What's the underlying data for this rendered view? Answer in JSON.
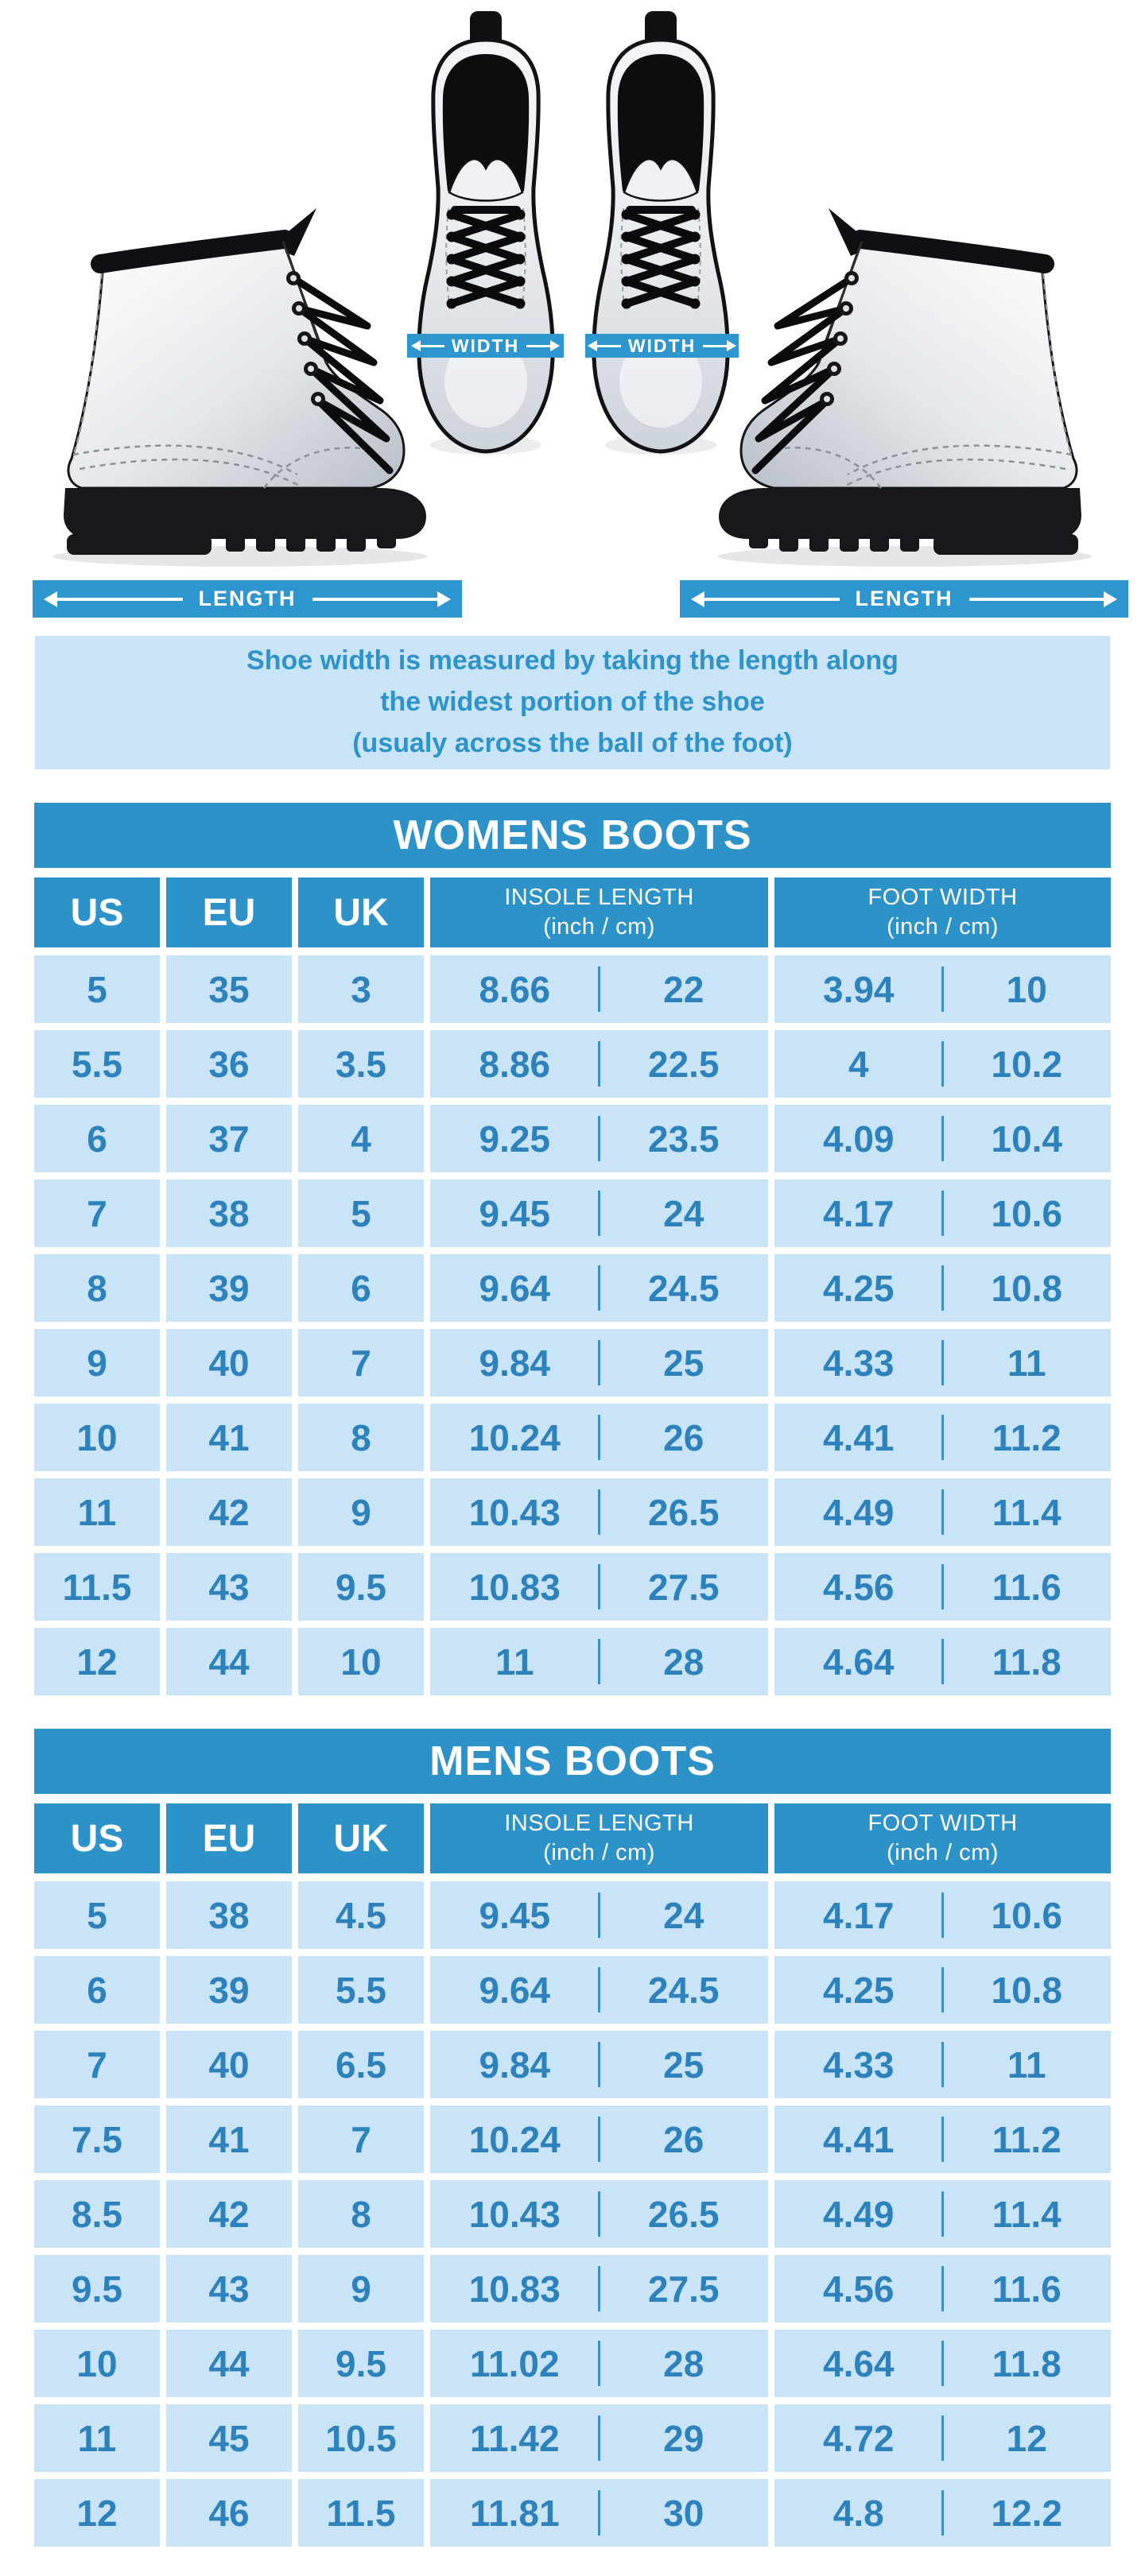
{
  "colors": {
    "solid_blue": "#2D92C8",
    "band_blue": "#2E96CE",
    "light_cell_blue": "#C9E4F6",
    "value_text_blue": "#2E82BC",
    "white": "#FFFFFF"
  },
  "measure_labels": {
    "width_left": "WIDTH",
    "width_right": "WIDTH",
    "length_left": "LENGTH",
    "length_right": "LENGTH"
  },
  "info_note": {
    "line1": "Shoe width is measured by taking the length along",
    "line2": "the widest portion of the shoe",
    "line3": "(usualy across the ball of the foot)"
  },
  "womens_table": {
    "title": "WOMENS BOOTS",
    "headers": {
      "us": "US",
      "eu": "EU",
      "uk": "UK",
      "insole_line1": "INSOLE LENGTH",
      "insole_line2": "(inch / cm)",
      "foot_line1": "FOOT WIDTH",
      "foot_line2": "(inch / cm)"
    },
    "rows": [
      {
        "us": "5",
        "eu": "35",
        "uk": "3",
        "insole_inch": "8.66",
        "insole_cm": "22",
        "foot_inch": "3.94",
        "foot_cm": "10"
      },
      {
        "us": "5.5",
        "eu": "36",
        "uk": "3.5",
        "insole_inch": "8.86",
        "insole_cm": "22.5",
        "foot_inch": "4",
        "foot_cm": "10.2"
      },
      {
        "us": "6",
        "eu": "37",
        "uk": "4",
        "insole_inch": "9.25",
        "insole_cm": "23.5",
        "foot_inch": "4.09",
        "foot_cm": "10.4"
      },
      {
        "us": "7",
        "eu": "38",
        "uk": "5",
        "insole_inch": "9.45",
        "insole_cm": "24",
        "foot_inch": "4.17",
        "foot_cm": "10.6"
      },
      {
        "us": "8",
        "eu": "39",
        "uk": "6",
        "insole_inch": "9.64",
        "insole_cm": "24.5",
        "foot_inch": "4.25",
        "foot_cm": "10.8"
      },
      {
        "us": "9",
        "eu": "40",
        "uk": "7",
        "insole_inch": "9.84",
        "insole_cm": "25",
        "foot_inch": "4.33",
        "foot_cm": "11"
      },
      {
        "us": "10",
        "eu": "41",
        "uk": "8",
        "insole_inch": "10.24",
        "insole_cm": "26",
        "foot_inch": "4.41",
        "foot_cm": "11.2"
      },
      {
        "us": "11",
        "eu": "42",
        "uk": "9",
        "insole_inch": "10.43",
        "insole_cm": "26.5",
        "foot_inch": "4.49",
        "foot_cm": "11.4"
      },
      {
        "us": "11.5",
        "eu": "43",
        "uk": "9.5",
        "insole_inch": "10.83",
        "insole_cm": "27.5",
        "foot_inch": "4.56",
        "foot_cm": "11.6"
      },
      {
        "us": "12",
        "eu": "44",
        "uk": "10",
        "insole_inch": "11",
        "insole_cm": "28",
        "foot_inch": "4.64",
        "foot_cm": "11.8"
      }
    ]
  },
  "mens_table": {
    "title": "MENS BOOTS",
    "headers": {
      "us": "US",
      "eu": "EU",
      "uk": "UK",
      "insole_line1": "INSOLE LENGTH",
      "insole_line2": "(inch / cm)",
      "foot_line1": "FOOT WIDTH",
      "foot_line2": "(inch / cm)"
    },
    "rows": [
      {
        "us": "5",
        "eu": "38",
        "uk": "4.5",
        "insole_inch": "9.45",
        "insole_cm": "24",
        "foot_inch": "4.17",
        "foot_cm": "10.6"
      },
      {
        "us": "6",
        "eu": "39",
        "uk": "5.5",
        "insole_inch": "9.64",
        "insole_cm": "24.5",
        "foot_inch": "4.25",
        "foot_cm": "10.8"
      },
      {
        "us": "7",
        "eu": "40",
        "uk": "6.5",
        "insole_inch": "9.84",
        "insole_cm": "25",
        "foot_inch": "4.33",
        "foot_cm": "11"
      },
      {
        "us": "7.5",
        "eu": "41",
        "uk": "7",
        "insole_inch": "10.24",
        "insole_cm": "26",
        "foot_inch": "4.41",
        "foot_cm": "11.2"
      },
      {
        "us": "8.5",
        "eu": "42",
        "uk": "8",
        "insole_inch": "10.43",
        "insole_cm": "26.5",
        "foot_inch": "4.49",
        "foot_cm": "11.4"
      },
      {
        "us": "9.5",
        "eu": "43",
        "uk": "9",
        "insole_inch": "10.83",
        "insole_cm": "27.5",
        "foot_inch": "4.56",
        "foot_cm": "11.6"
      },
      {
        "us": "10",
        "eu": "44",
        "uk": "9.5",
        "insole_inch": "11.02",
        "insole_cm": "28",
        "foot_inch": "4.64",
        "foot_cm": "11.8"
      },
      {
        "us": "11",
        "eu": "45",
        "uk": "10.5",
        "insole_inch": "11.42",
        "insole_cm": "29",
        "foot_inch": "4.72",
        "foot_cm": "12"
      },
      {
        "us": "12",
        "eu": "46",
        "uk": "11.5",
        "insole_inch": "11.81",
        "insole_cm": "30",
        "foot_inch": "4.8",
        "foot_cm": "12.2"
      }
    ]
  }
}
